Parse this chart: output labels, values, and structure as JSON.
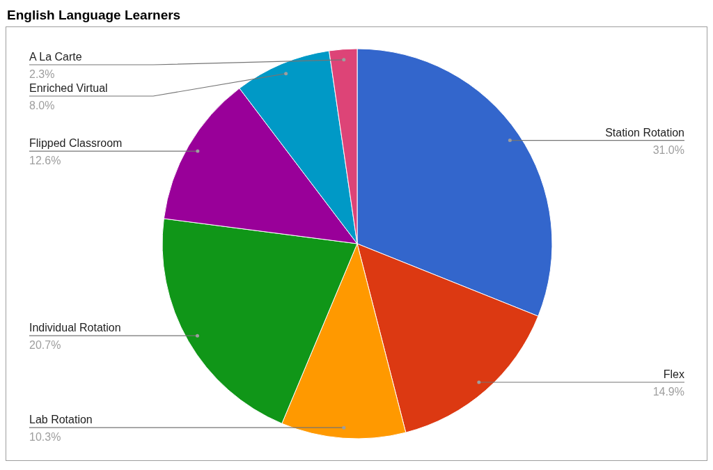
{
  "chart_data": {
    "type": "pie",
    "title": "English Language Learners",
    "categories": [
      "Station Rotation",
      "Flex",
      "Lab Rotation",
      "Individual Rotation",
      "Flipped Classroom",
      "Enriched Virtual",
      "A La Carte"
    ],
    "values": [
      31.0,
      14.9,
      10.3,
      20.7,
      12.6,
      8.0,
      2.3
    ],
    "value_labels": [
      "31.0%",
      "14.9%",
      "10.3%",
      "20.7%",
      "12.6%",
      "8.0%",
      "2.3%"
    ],
    "colors": [
      "#3366cc",
      "#dc3912",
      "#ff9900",
      "#109618",
      "#990099",
      "#0099c6",
      "#dd4477"
    ]
  }
}
